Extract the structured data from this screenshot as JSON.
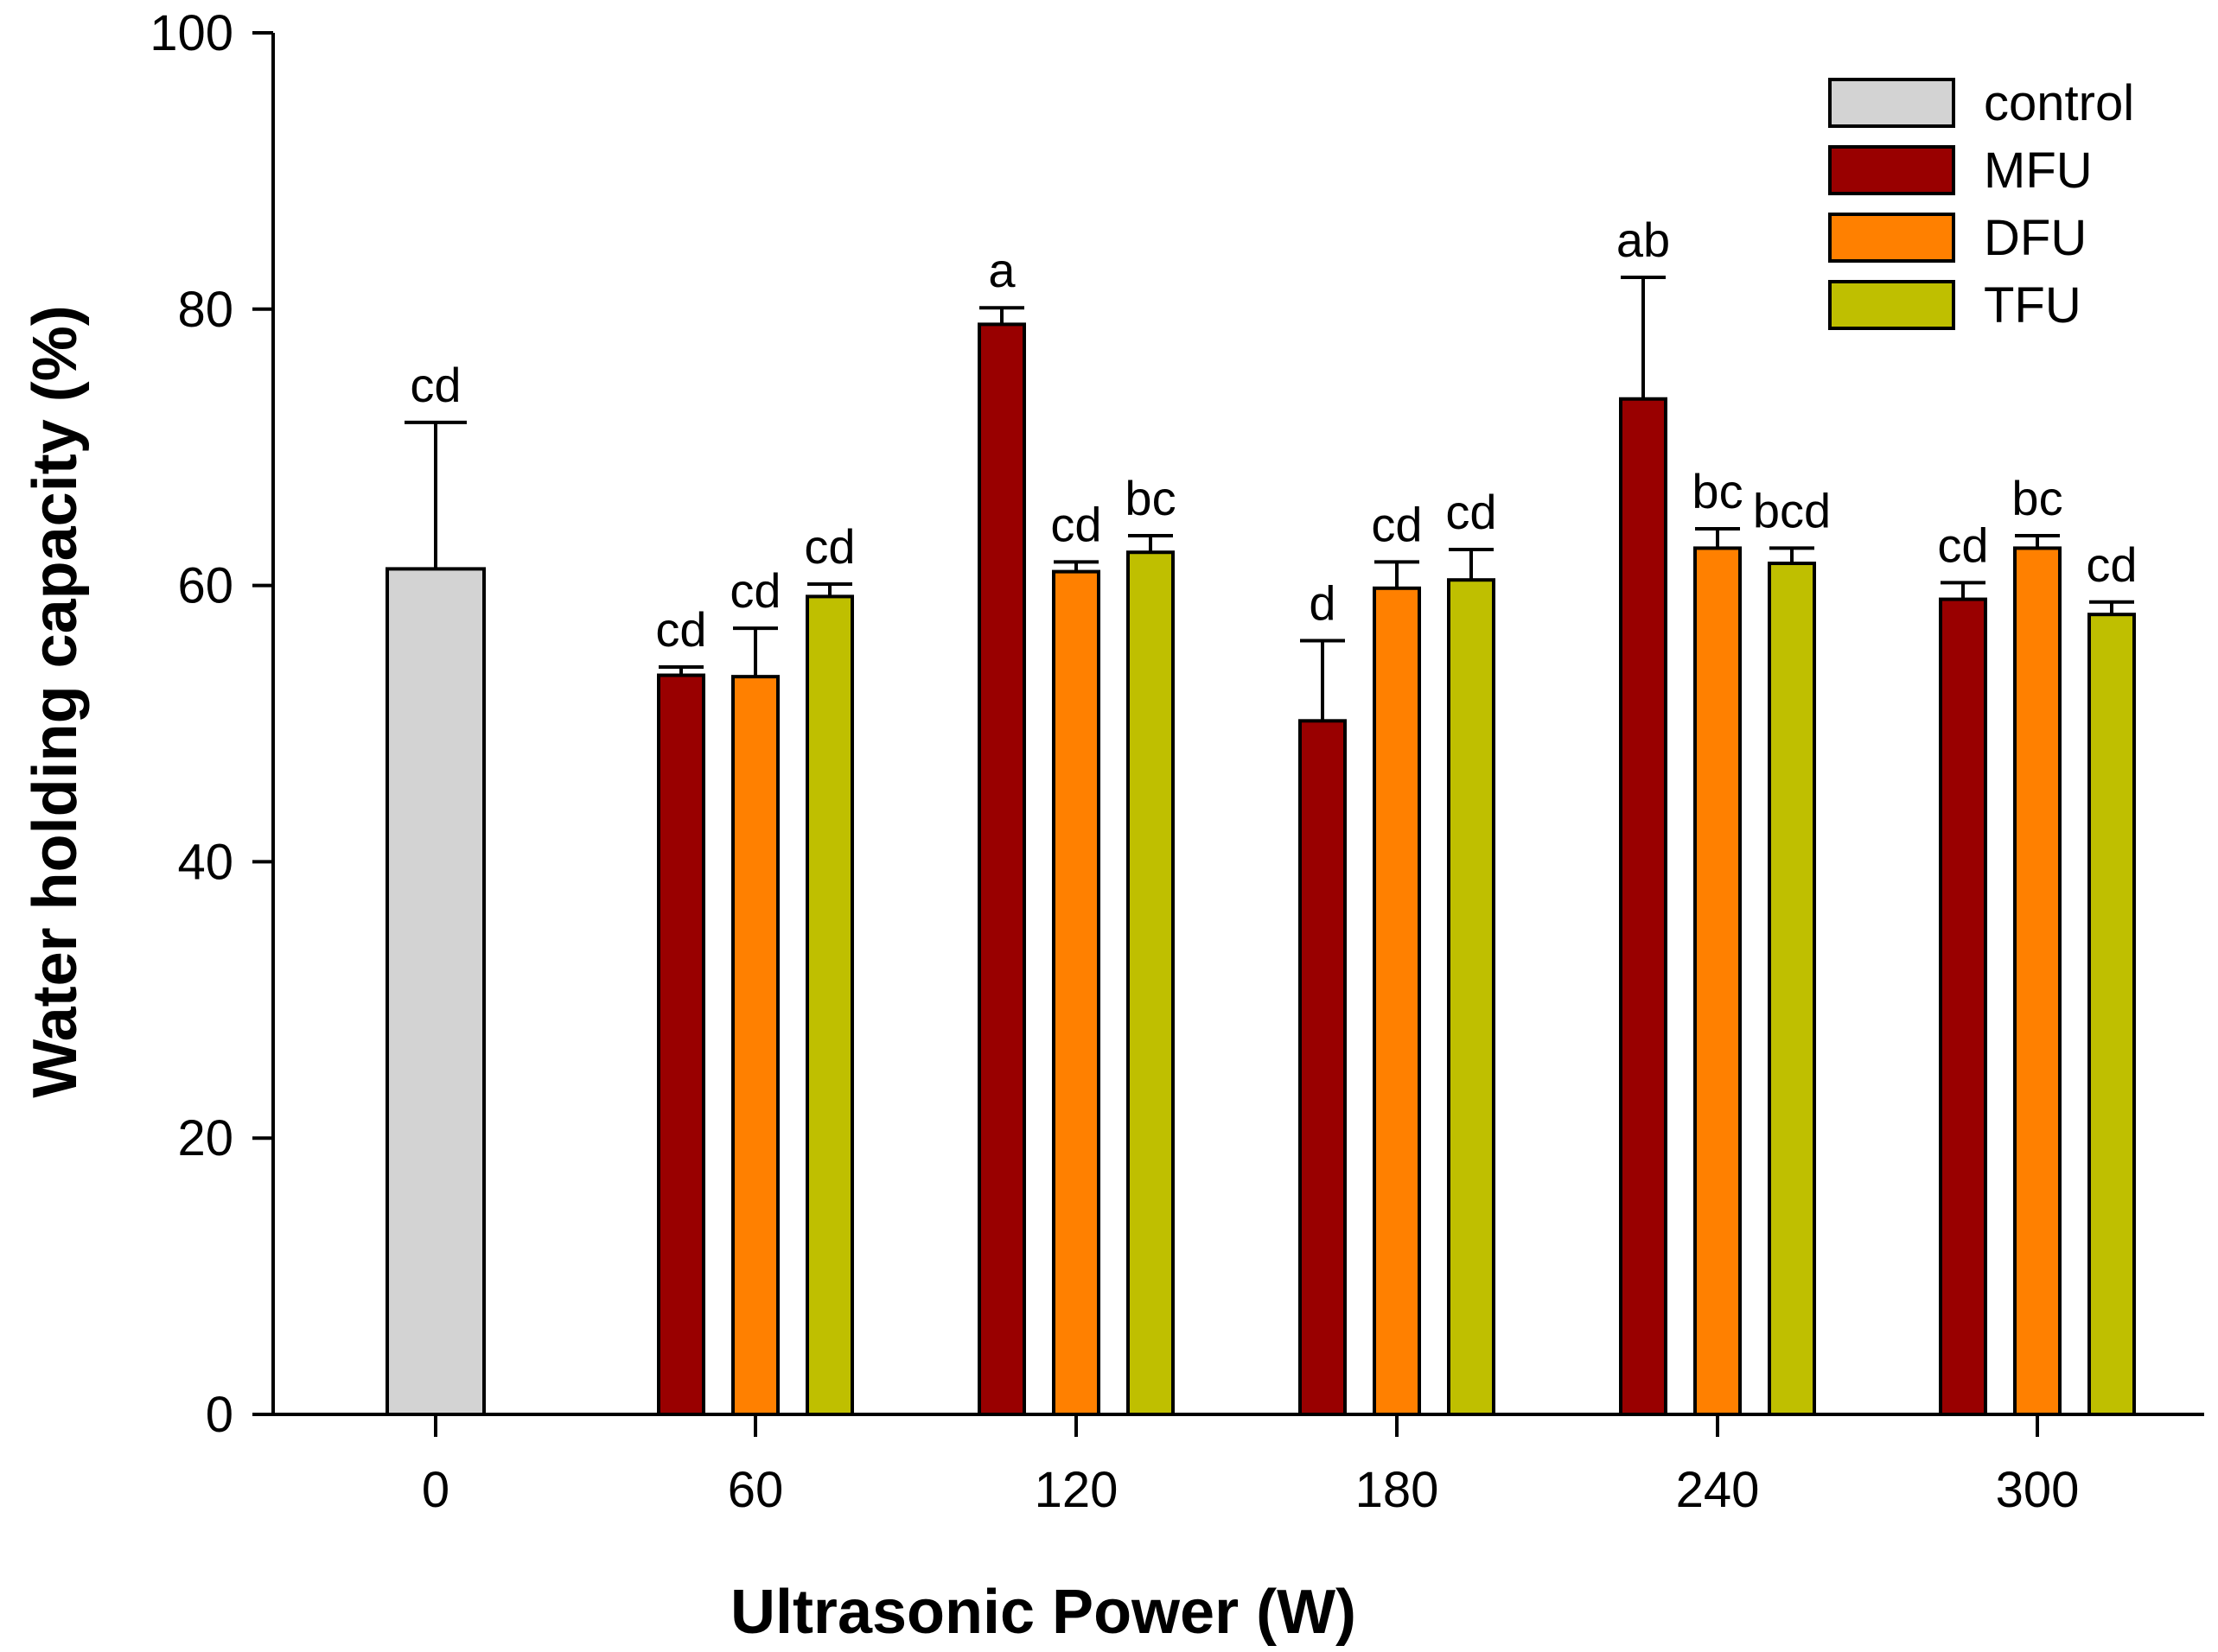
{
  "chart_data": {
    "type": "bar",
    "title": "",
    "xlabel": "Ultrasonic Power (W)",
    "ylabel": "Water holding capacity (%)",
    "ylim": [
      0,
      100
    ],
    "yticks": [
      "0",
      "20",
      "40",
      "60",
      "80",
      "100"
    ],
    "categories": [
      "0",
      "60",
      "120",
      "180",
      "240",
      "300"
    ],
    "legend_position": "top-right",
    "series": [
      {
        "name": "control",
        "color": "#d3d3d3",
        "values": [
          61.2,
          null,
          null,
          null,
          null,
          null
        ],
        "errors": [
          10.6,
          null,
          null,
          null,
          null,
          null
        ],
        "labels": [
          "cd",
          null,
          null,
          null,
          null,
          null
        ]
      },
      {
        "name": "MFU",
        "color": "#990000",
        "values": [
          null,
          53.5,
          78.9,
          50.2,
          73.5,
          59.0
        ],
        "errors": [
          null,
          0.6,
          1.2,
          5.8,
          8.8,
          1.2
        ],
        "labels": [
          null,
          "cd",
          "a",
          "d",
          "ab",
          "cd"
        ]
      },
      {
        "name": "DFU",
        "color": "#ff8000",
        "values": [
          null,
          53.4,
          61.0,
          59.8,
          62.7,
          62.7
        ],
        "errors": [
          null,
          3.5,
          0.7,
          1.9,
          1.4,
          0.9
        ],
        "labels": [
          null,
          "cd",
          "cd",
          "cd",
          "bc",
          "bc"
        ]
      },
      {
        "name": "TFU",
        "color": "#bfbf00",
        "values": [
          null,
          59.2,
          62.4,
          60.4,
          61.6,
          57.9
        ],
        "errors": [
          null,
          0.9,
          1.2,
          2.2,
          1.1,
          0.9
        ],
        "labels": [
          null,
          "cd",
          "bc",
          "cd",
          "bcd",
          "cd"
        ]
      }
    ]
  }
}
